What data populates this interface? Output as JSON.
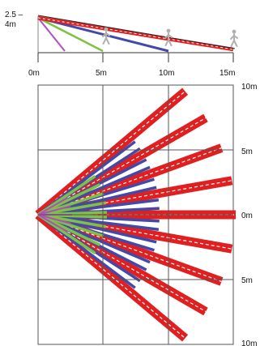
{
  "side_view": {
    "height_label_line1": "2.5 –",
    "height_label_line2": "4m",
    "x_labels": [
      "0m",
      "5m",
      "10m",
      "15m"
    ],
    "icons": [
      "walking-person-icon",
      "walking-person-icon",
      "walking-person-icon"
    ]
  },
  "top_view": {
    "y_labels": [
      "10m",
      "5m",
      "0m",
      "5m",
      "10m"
    ]
  },
  "colors": {
    "purple": "#b04ec0",
    "green": "#7dc242",
    "blue": "#4448a8",
    "red": "#e02020",
    "grid": "#555555"
  }
}
